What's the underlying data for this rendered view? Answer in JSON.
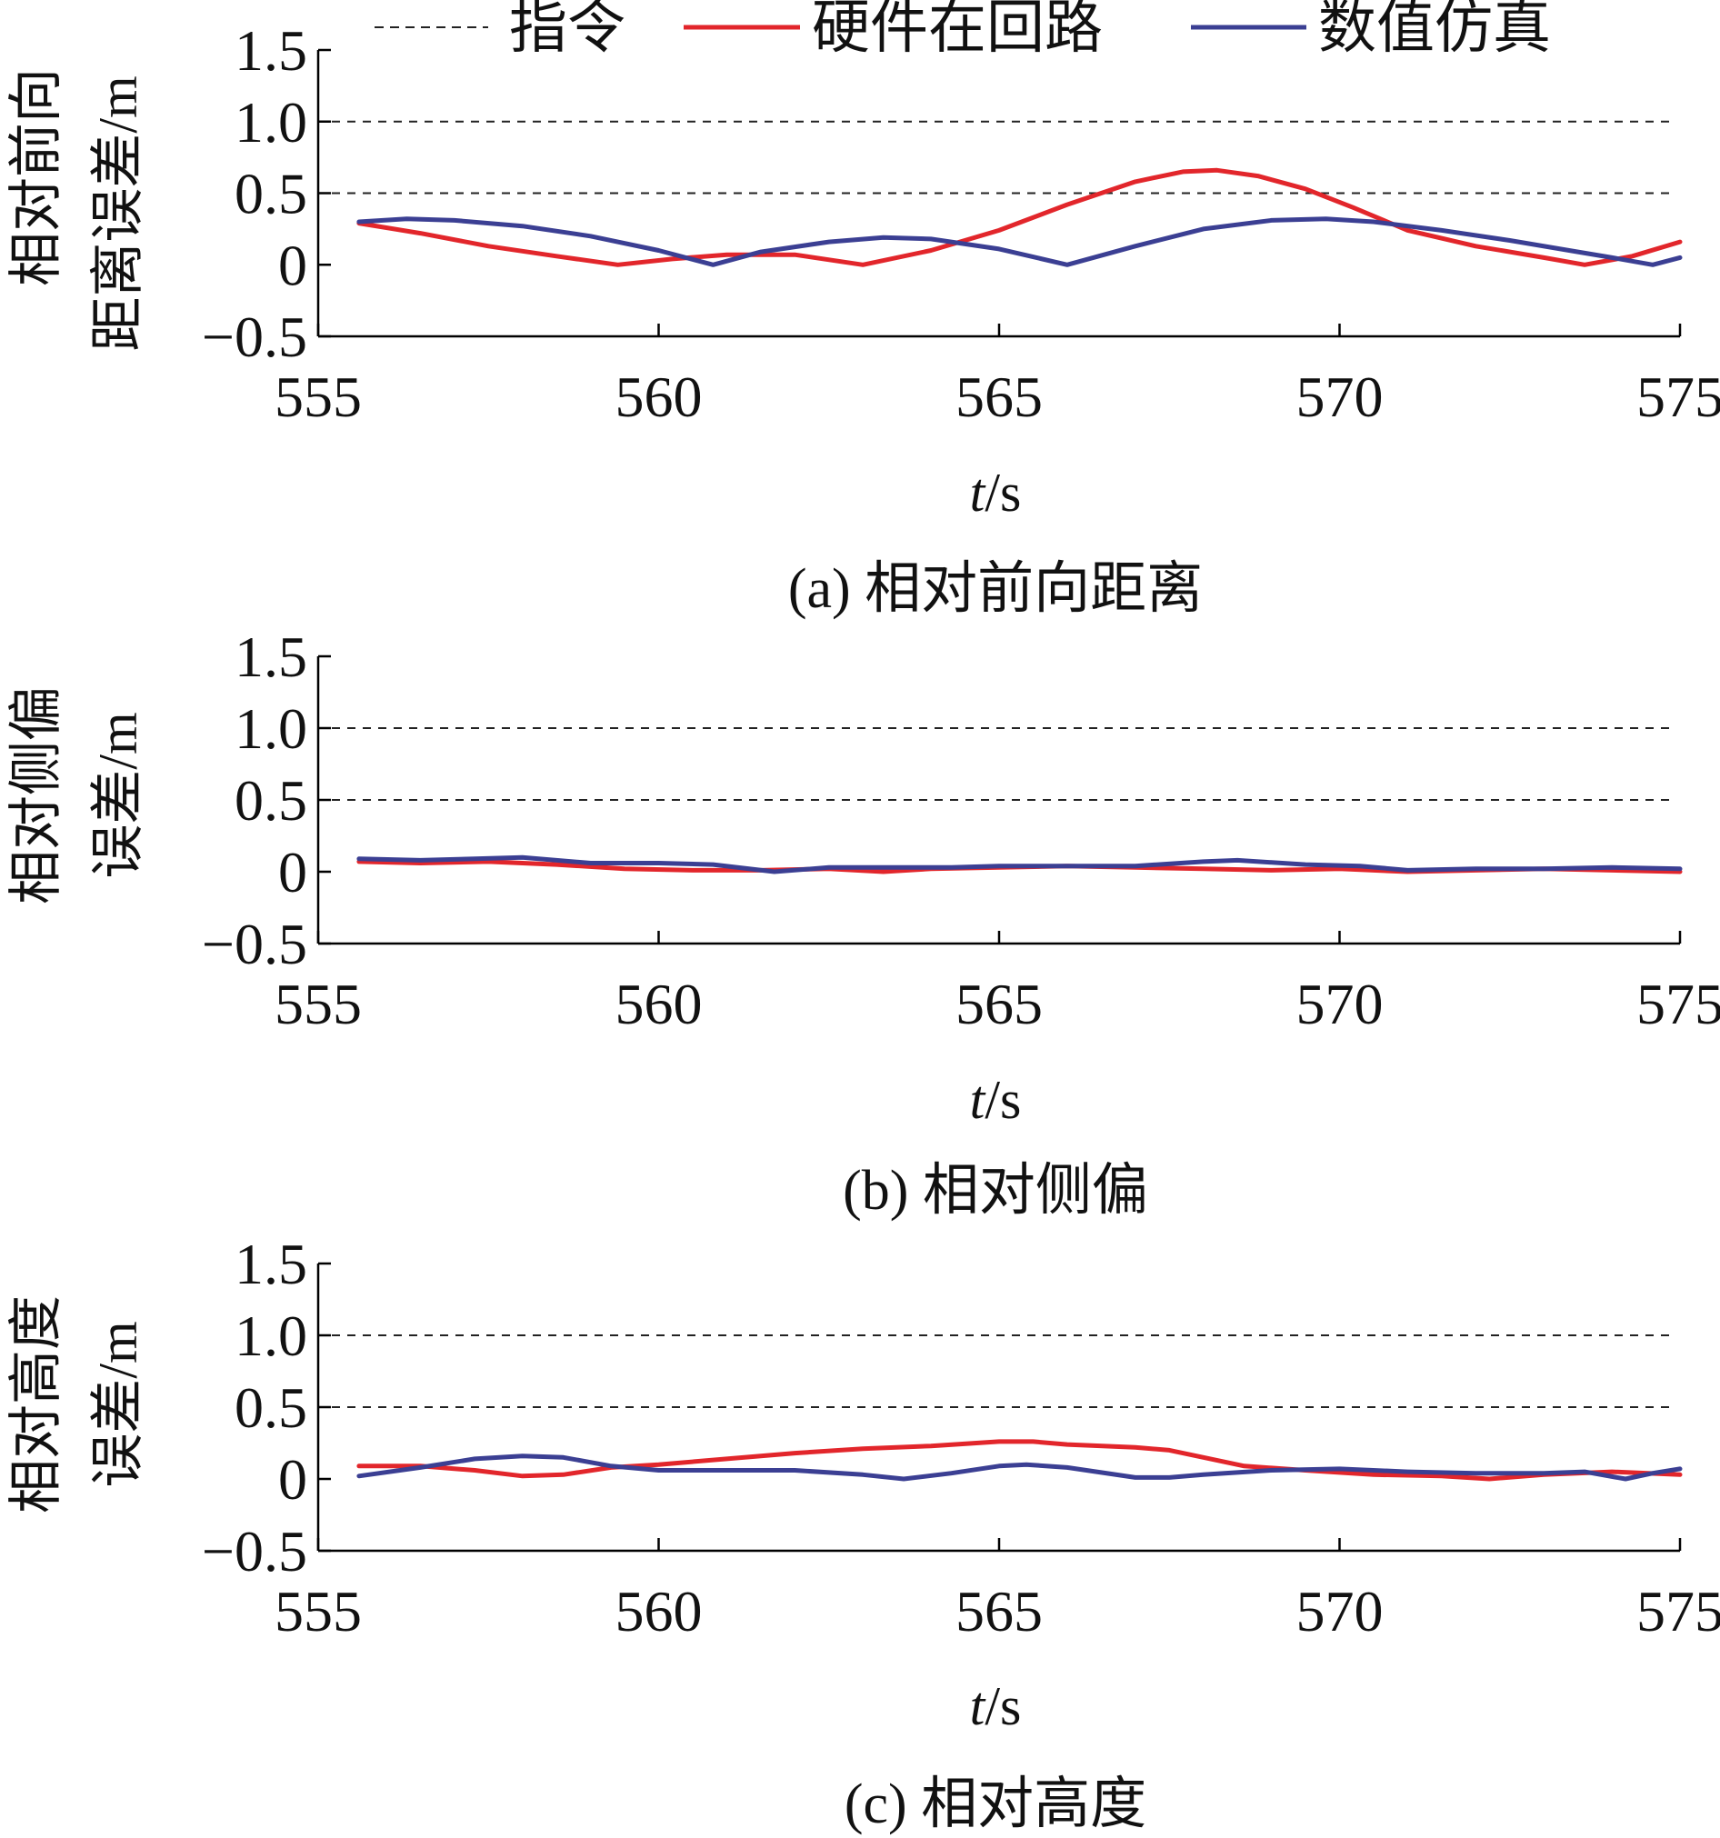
{
  "legend": {
    "items": [
      {
        "label": "指令",
        "color": "#222222",
        "style": "dashed"
      },
      {
        "label": "硬件在回路",
        "color": "#e2262b",
        "style": "solid"
      },
      {
        "label": "数值仿真",
        "color": "#3b3f93",
        "style": "solid"
      }
    ]
  },
  "colors": {
    "command": "#222222",
    "hil": "#e2262b",
    "sim": "#3b3f93",
    "axis": "#000000"
  },
  "chart_data": [
    {
      "type": "line",
      "caption": "(a) 相对前向距离",
      "ylabel_lines": [
        "相对前向",
        "距离误差/m"
      ],
      "xlabel_italic": "t",
      "xlabel_rest": "/s",
      "xlim": [
        555,
        575
      ],
      "ylim": [
        -0.5,
        1.5
      ],
      "xticks": [
        555,
        560,
        565,
        570,
        575
      ],
      "yticks": [
        -0.5,
        0,
        0.5,
        1.0,
        1.5
      ],
      "ytick_labels": [
        "−0.5",
        "0",
        "0.5",
        "1.0",
        "1.5"
      ],
      "command_levels": [
        0.5,
        1.0
      ],
      "series": [
        {
          "name": "硬件在回路",
          "key": "hil",
          "x": [
            555.6,
            556.5,
            557.5,
            558.5,
            559.4,
            560.2,
            561.0,
            562.0,
            563.0,
            564.0,
            565.0,
            566.0,
            567.0,
            567.7,
            568.2,
            568.8,
            569.5,
            570.2,
            571.0,
            572.0,
            573.0,
            573.6,
            574.3,
            575.0
          ],
          "y": [
            0.29,
            0.22,
            0.13,
            0.06,
            0.0,
            0.04,
            0.07,
            0.07,
            0.0,
            0.1,
            0.24,
            0.42,
            0.58,
            0.65,
            0.66,
            0.62,
            0.53,
            0.4,
            0.24,
            0.13,
            0.05,
            0.0,
            0.06,
            0.16
          ]
        },
        {
          "name": "数值仿真",
          "key": "sim",
          "x": [
            555.6,
            556.3,
            557.0,
            558.0,
            559.0,
            560.0,
            560.8,
            561.5,
            562.5,
            563.3,
            564.0,
            565.0,
            566.0,
            567.0,
            568.0,
            569.0,
            569.8,
            570.5,
            571.5,
            572.5,
            573.5,
            574.0,
            574.6,
            575.0
          ],
          "y": [
            0.3,
            0.32,
            0.31,
            0.27,
            0.2,
            0.1,
            0.0,
            0.09,
            0.16,
            0.19,
            0.18,
            0.11,
            0.0,
            0.13,
            0.25,
            0.31,
            0.32,
            0.3,
            0.24,
            0.17,
            0.09,
            0.05,
            0.0,
            0.05
          ]
        }
      ]
    },
    {
      "type": "line",
      "caption": "(b) 相对侧偏",
      "ylabel_lines": [
        "相对侧偏",
        "误差/m"
      ],
      "xlabel_italic": "t",
      "xlabel_rest": "/s",
      "xlim": [
        555,
        575
      ],
      "ylim": [
        -0.5,
        1.5
      ],
      "xticks": [
        555,
        560,
        565,
        570,
        575
      ],
      "yticks": [
        -0.5,
        0,
        0.5,
        1.0,
        1.5
      ],
      "ytick_labels": [
        "−0.5",
        "0",
        "0.5",
        "1.0",
        "1.5"
      ],
      "command_levels": [
        0.5,
        1.0
      ],
      "series": [
        {
          "name": "硬件在回路",
          "key": "hil",
          "x": [
            555.6,
            556.5,
            557.5,
            558.5,
            559.5,
            560.5,
            561.5,
            562.5,
            563.3,
            564.0,
            565.0,
            566.0,
            567.0,
            568.0,
            569.0,
            570.0,
            571.0,
            572.0,
            573.0,
            574.0,
            575.0
          ],
          "y": [
            0.07,
            0.06,
            0.07,
            0.05,
            0.02,
            0.01,
            0.01,
            0.02,
            0.0,
            0.02,
            0.03,
            0.04,
            0.03,
            0.02,
            0.01,
            0.02,
            0.0,
            0.01,
            0.02,
            0.01,
            0.0
          ]
        },
        {
          "name": "数值仿真",
          "key": "sim",
          "x": [
            555.6,
            556.5,
            557.3,
            558.0,
            559.0,
            560.0,
            560.8,
            561.7,
            562.5,
            563.5,
            564.3,
            565.0,
            566.0,
            567.0,
            568.0,
            568.5,
            569.5,
            570.3,
            571.0,
            572.0,
            573.0,
            574.0,
            575.0
          ],
          "y": [
            0.09,
            0.08,
            0.09,
            0.1,
            0.06,
            0.06,
            0.05,
            0.0,
            0.03,
            0.03,
            0.03,
            0.04,
            0.04,
            0.04,
            0.07,
            0.08,
            0.05,
            0.04,
            0.01,
            0.02,
            0.02,
            0.03,
            0.02
          ]
        }
      ]
    },
    {
      "type": "line",
      "caption": "(c) 相对高度",
      "ylabel_lines": [
        "相对高度",
        "误差/m"
      ],
      "xlabel_italic": "t",
      "xlabel_rest": "/s",
      "xlim": [
        555,
        575
      ],
      "ylim": [
        -0.5,
        1.5
      ],
      "xticks": [
        555,
        560,
        565,
        570,
        575
      ],
      "yticks": [
        -0.5,
        0,
        0.5,
        1.0,
        1.5
      ],
      "ytick_labels": [
        "−0.5",
        "0",
        "0.5",
        "1.0",
        "1.5"
      ],
      "command_levels": [
        0.5,
        1.0
      ],
      "series": [
        {
          "name": "硬件在回路",
          "key": "hil",
          "x": [
            555.6,
            556.5,
            557.3,
            558.0,
            558.6,
            559.3,
            560.0,
            561.0,
            562.0,
            563.0,
            564.0,
            565.0,
            565.5,
            566.0,
            567.0,
            567.5,
            568.0,
            568.6,
            569.5,
            570.5,
            571.5,
            572.2,
            573.0,
            574.0,
            575.0
          ],
          "y": [
            0.09,
            0.09,
            0.06,
            0.02,
            0.03,
            0.08,
            0.1,
            0.14,
            0.18,
            0.21,
            0.23,
            0.26,
            0.26,
            0.24,
            0.22,
            0.2,
            0.15,
            0.09,
            0.06,
            0.03,
            0.02,
            0.0,
            0.03,
            0.05,
            0.03
          ]
        },
        {
          "name": "数值仿真",
          "key": "sim",
          "x": [
            555.6,
            556.5,
            557.3,
            558.0,
            558.6,
            559.3,
            560.0,
            561.0,
            562.0,
            563.0,
            563.6,
            564.3,
            565.0,
            565.4,
            566.0,
            567.0,
            567.5,
            568.0,
            569.0,
            570.0,
            571.0,
            572.0,
            573.0,
            573.6,
            574.2,
            574.6,
            575.0
          ],
          "y": [
            0.02,
            0.08,
            0.14,
            0.16,
            0.15,
            0.09,
            0.06,
            0.06,
            0.06,
            0.03,
            0.0,
            0.04,
            0.09,
            0.1,
            0.08,
            0.01,
            0.01,
            0.03,
            0.06,
            0.07,
            0.05,
            0.04,
            0.04,
            0.05,
            0.0,
            0.04,
            0.07
          ]
        }
      ]
    }
  ]
}
